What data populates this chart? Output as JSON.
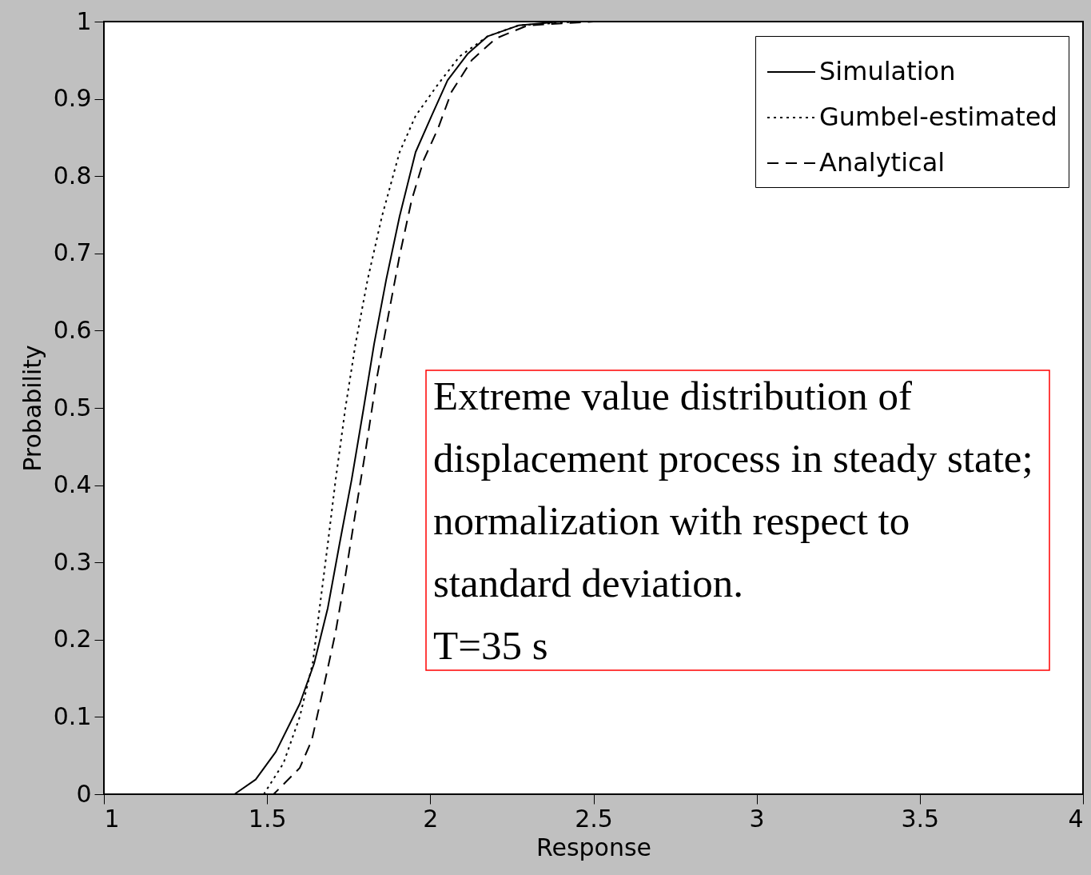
{
  "chart_data": {
    "type": "line",
    "xlabel": "Response",
    "ylabel": "Probability",
    "xlim": [
      1,
      4
    ],
    "ylim": [
      0,
      1
    ],
    "xticks": [
      1,
      1.5,
      2,
      2.5,
      3,
      3.5,
      4
    ],
    "yticks": [
      0,
      0.1,
      0.2,
      0.3,
      0.4,
      0.5,
      0.6,
      0.7,
      0.8,
      0.9,
      1
    ],
    "grid": false,
    "legend": "top right",
    "series": [
      {
        "name": "Simulation",
        "color": "#000000",
        "line_style": "solid",
        "x": [
          1.0,
          1.4,
          1.465,
          1.527,
          1.6,
          1.644,
          1.686,
          1.722,
          1.759,
          1.796,
          1.828,
          1.865,
          1.906,
          1.955,
          2.004,
          2.053,
          2.114,
          2.176,
          2.27,
          2.4
        ],
        "values": [
          0,
          0,
          0.019,
          0.055,
          0.117,
          0.169,
          0.241,
          0.324,
          0.407,
          0.5,
          0.583,
          0.666,
          0.748,
          0.831,
          0.878,
          0.924,
          0.958,
          0.981,
          0.995,
          1.0
        ]
      },
      {
        "name": "Gumbel-estimated",
        "color": "#000000",
        "line_style": "dotted",
        "x": [
          1.0,
          1.49,
          1.55,
          1.6,
          1.64,
          1.661,
          1.686,
          1.71,
          1.74,
          1.771,
          1.808,
          1.852,
          1.906,
          1.955,
          2.024,
          2.09,
          2.176,
          2.27,
          2.45
        ],
        "values": [
          0,
          0,
          0.04,
          0.1,
          0.17,
          0.241,
          0.324,
          0.407,
          0.5,
          0.583,
          0.666,
          0.748,
          0.831,
          0.878,
          0.919,
          0.955,
          0.981,
          0.995,
          1.0
        ]
      },
      {
        "name": "Analytical",
        "color": "#000000",
        "line_style": "dashed",
        "x": [
          1.0,
          1.52,
          1.539,
          1.6,
          1.637,
          1.673,
          1.71,
          1.74,
          1.771,
          1.803,
          1.833,
          1.869,
          1.906,
          1.943,
          1.98,
          2.024,
          2.065,
          2.127,
          2.2,
          2.298,
          2.5
        ],
        "values": [
          0,
          0,
          0.008,
          0.034,
          0.07,
          0.138,
          0.21,
          0.283,
          0.365,
          0.448,
          0.531,
          0.614,
          0.697,
          0.769,
          0.821,
          0.862,
          0.909,
          0.95,
          0.978,
          0.995,
          1.0
        ]
      }
    ],
    "annotations": [
      "Extreme value distribution of",
      "displacement process in steady state;",
      "normalization with respect to",
      "standard deviation.",
      "T=35 s"
    ]
  }
}
